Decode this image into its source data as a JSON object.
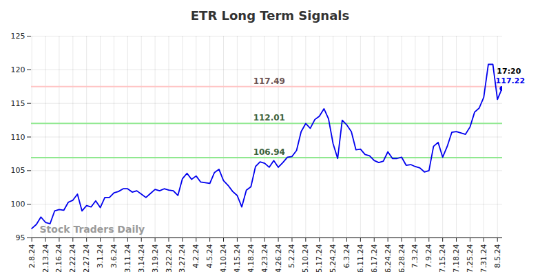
{
  "chart_data": {
    "type": "line",
    "title": "ETR Long Term Signals",
    "color": "#0000ee",
    "categories": [
      "2.8.24",
      null,
      null,
      "2.13.24",
      null,
      null,
      "2.16.24",
      null,
      null,
      "2.22.24",
      null,
      null,
      "2.27.24",
      null,
      null,
      "3.1.24",
      null,
      null,
      "3.6.24",
      null,
      null,
      "3.11.24",
      null,
      null,
      "3.14.24",
      null,
      null,
      "3.19.24",
      null,
      null,
      "3.22.24",
      null,
      null,
      "3.27.24",
      null,
      null,
      "4.2.24",
      null,
      null,
      "4.5.24",
      null,
      null,
      "4.10.24",
      null,
      null,
      "4.15.24",
      null,
      null,
      "4.18.24",
      null,
      null,
      "4.23.24",
      null,
      null,
      "4.26.24",
      null,
      null,
      "5.2.24",
      null,
      null,
      "5.10.24",
      null,
      null,
      "5.17.24",
      null,
      null,
      "5.24.24",
      null,
      null,
      "6.3.24",
      null,
      null,
      "6.11.24",
      null,
      null,
      "6.17.24",
      null,
      null,
      "6.24.24",
      null,
      null,
      "6.28.24",
      null,
      null,
      "7.3.24",
      null,
      null,
      "7.9.24",
      null,
      null,
      "7.15.24",
      null,
      null,
      "7.18.24",
      null,
      null,
      "7.25.24",
      null,
      null,
      "7.31.24",
      null,
      null,
      "8.5.24",
      null
    ],
    "values": [
      96.4,
      97,
      98.1,
      97.3,
      97.1,
      99,
      99.2,
      99.1,
      100.3,
      100.6,
      101.5,
      99,
      99.8,
      99.6,
      100.5,
      99.5,
      101,
      101,
      101.7,
      101.9,
      102.3,
      102.3,
      101.8,
      102,
      101.5,
      101,
      101.6,
      102.2,
      102,
      102.3,
      102.1,
      102,
      101.3,
      103.8,
      104.6,
      103.7,
      104.2,
      103.3,
      103.2,
      103.1,
      104.7,
      105.2,
      103.5,
      102.8,
      101.9,
      101.3,
      99.6,
      102.1,
      102.6,
      105.6,
      106.3,
      106.1,
      105.5,
      106.5,
      105.5,
      106.2,
      107,
      107.1,
      108,
      110.8,
      112,
      111.3,
      112.6,
      113.1,
      114.2,
      112.7,
      109,
      106.8,
      112.5,
      111.8,
      110.8,
      108.1,
      108.2,
      107.4,
      107.2,
      106.5,
      106.2,
      106.4,
      107.8,
      106.8,
      106.8,
      107,
      105.8,
      105.9,
      105.6,
      105.4,
      104.8,
      105,
      108.6,
      109.2,
      107,
      108.6,
      110.7,
      110.8,
      110.6,
      110.4,
      111.5,
      113.7,
      114.3,
      115.9,
      120.8,
      120.8,
      115.6,
      117.22
    ],
    "levels": [
      {
        "value": 117.49,
        "color": "#ffc4c4"
      },
      {
        "value": 112.01,
        "color": "#90e890"
      },
      {
        "value": 106.94,
        "color": "#90e890"
      }
    ],
    "annotations": [
      {
        "text": "Stock Traders Daily"
      },
      {
        "text": "17:20"
      }
    ],
    "ylim": [
      95,
      125
    ],
    "yticks": [
      95,
      100,
      105,
      110,
      115,
      120,
      125
    ],
    "grid": true
  }
}
